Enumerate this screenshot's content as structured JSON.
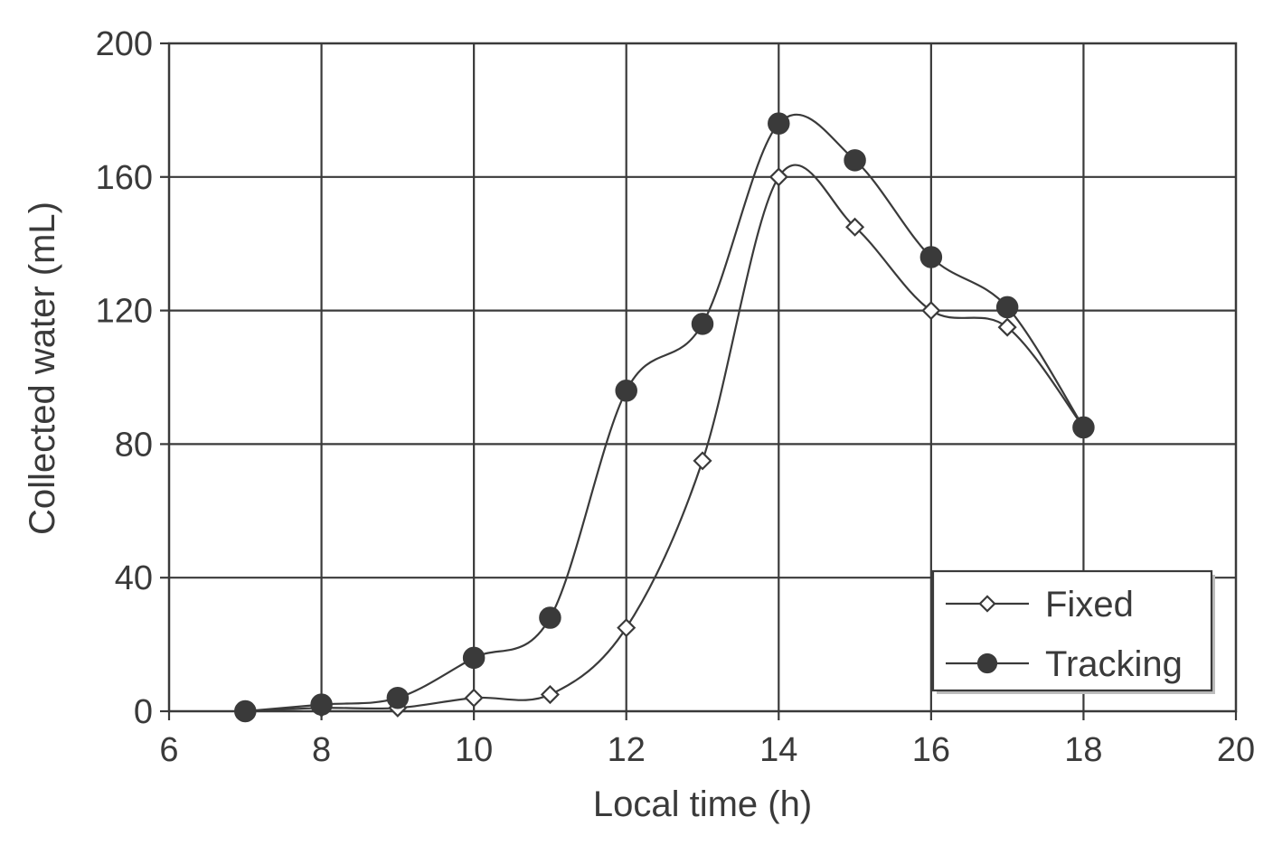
{
  "chart_data": {
    "type": "line",
    "title": "",
    "xlabel": "Local time (h)",
    "ylabel": "Collected water (mL)",
    "xlim": [
      6,
      20
    ],
    "ylim": [
      0,
      200
    ],
    "xticks": [
      6,
      8,
      10,
      12,
      14,
      16,
      18,
      20
    ],
    "yticks": [
      0,
      40,
      80,
      120,
      160,
      200
    ],
    "grid": true,
    "legend_position": "bottom-right",
    "series": [
      {
        "name": "Fixed",
        "marker": "open-diamond",
        "x": [
          7,
          8,
          9,
          10,
          11,
          12,
          13,
          14,
          15,
          16,
          17,
          18
        ],
        "y": [
          0,
          1,
          1,
          4,
          5,
          25,
          75,
          160,
          145,
          120,
          115,
          85
        ]
      },
      {
        "name": "Tracking",
        "marker": "filled-circle",
        "x": [
          7,
          8,
          9,
          10,
          11,
          12,
          13,
          14,
          15,
          16,
          17,
          18
        ],
        "y": [
          0,
          2,
          4,
          16,
          28,
          96,
          116,
          176,
          165,
          136,
          121,
          85
        ]
      }
    ],
    "colors": {
      "line": "#3a3a3a",
      "marker_fill": "#3a3a3a",
      "background": "#ffffff"
    }
  }
}
